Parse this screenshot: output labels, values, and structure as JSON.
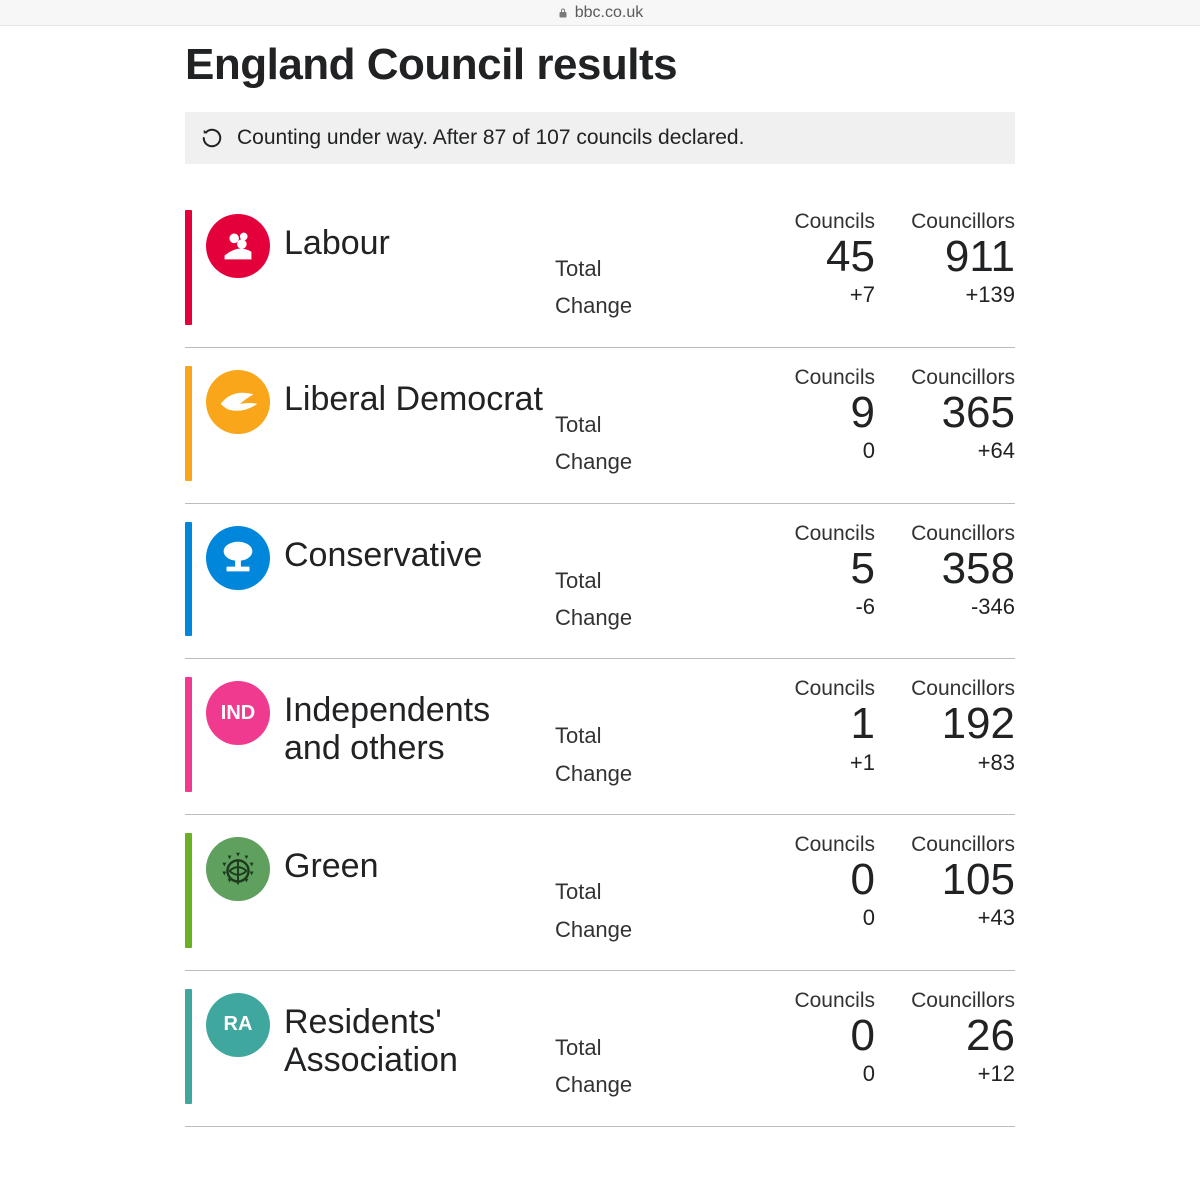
{
  "address_bar": {
    "domain": "bbc.co.uk"
  },
  "page": {
    "title": "England Council results"
  },
  "status": {
    "text": "Counting under way. After 87 of 107 councils declared."
  },
  "labels": {
    "councils": "Councils",
    "councillors": "Councillors",
    "total": "Total",
    "change": "Change"
  },
  "colors": {
    "banner_bg": "#f0f0f0",
    "divider": "#bcbcbc"
  },
  "parties": [
    {
      "id": "labour",
      "name": "Labour",
      "bar_color": "#e4003b",
      "logo_bg": "#e4003b",
      "logo_kind": "rose",
      "councils_total": "45",
      "councils_change": "+7",
      "councillors_total": "911",
      "councillors_change": "+139"
    },
    {
      "id": "libdem",
      "name": "Liberal Democrat",
      "bar_color": "#faa61a",
      "logo_bg": "#faa61a",
      "logo_kind": "bird",
      "councils_total": "9",
      "councils_change": "0",
      "councillors_total": "365",
      "councillors_change": "+64"
    },
    {
      "id": "conservative",
      "name": "Conservative",
      "bar_color": "#0087dc",
      "logo_bg": "#0087dc",
      "logo_kind": "tree",
      "councils_total": "5",
      "councils_change": "-6",
      "councillors_total": "358",
      "councillors_change": "-346"
    },
    {
      "id": "independents",
      "name": "Independents and others",
      "bar_color": "#ef3a90",
      "logo_bg": "#ef3a90",
      "logo_kind": "text",
      "logo_text": "IND",
      "councils_total": "1",
      "councils_change": "+1",
      "councillors_total": "192",
      "councillors_change": "+83"
    },
    {
      "id": "green",
      "name": "Green",
      "bar_color": "#6ab023",
      "logo_bg": "#5fa05f",
      "logo_kind": "globe",
      "councils_total": "0",
      "councils_change": "0",
      "councillors_total": "105",
      "councillors_change": "+43"
    },
    {
      "id": "residents",
      "name": "Residents' Association",
      "bar_color": "#3fa79e",
      "logo_bg": "#3fa79e",
      "logo_kind": "text",
      "logo_text": "RA",
      "councils_total": "0",
      "councils_change": "0",
      "councillors_total": "26",
      "councillors_change": "+12"
    }
  ]
}
